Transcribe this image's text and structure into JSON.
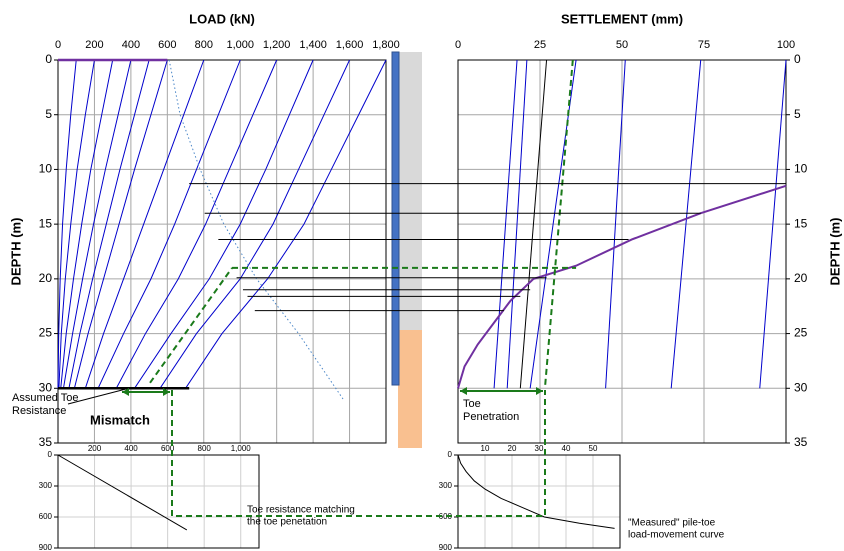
{
  "chart_data": [
    {
      "type": "line",
      "xlabel": "LOAD  (kN)",
      "ylabel": "DEPTH  (m)",
      "xlim": [
        0,
        1800
      ],
      "ylim": [
        0,
        35
      ],
      "xticks": [
        0,
        200,
        400,
        600,
        800,
        {
          "value": 1000,
          "label": "1,000"
        },
        {
          "value": 1200,
          "label": "1,200"
        },
        {
          "value": 1400,
          "label": "1,400"
        },
        {
          "value": 1600,
          "label": "1,600"
        },
        {
          "value": 1800,
          "label": "1,800"
        }
      ],
      "yticks": [
        0,
        5,
        10,
        15,
        20,
        25,
        30,
        35
      ],
      "grid": true,
      "series": [
        {
          "color": "#0000cc",
          "x": [
            100,
            70,
            45,
            25,
            12,
            4,
            0
          ],
          "values": [
            0,
            5,
            10,
            15,
            20,
            25,
            30
          ]
        },
        {
          "color": "#0000cc",
          "x": [
            200,
            150,
            105,
            70,
            40,
            18,
            5
          ],
          "values": [
            0,
            5,
            10,
            15,
            20,
            25,
            30
          ]
        },
        {
          "color": "#0000cc",
          "x": [
            300,
            240,
            180,
            130,
            85,
            45,
            15
          ],
          "values": [
            0,
            5,
            10,
            15,
            20,
            25,
            30
          ]
        },
        {
          "color": "#0000cc",
          "x": [
            400,
            330,
            260,
            195,
            135,
            80,
            30
          ],
          "values": [
            0,
            5,
            10,
            15,
            20,
            25,
            30
          ]
        },
        {
          "color": "#0000cc",
          "x": [
            500,
            420,
            340,
            265,
            190,
            120,
            60
          ],
          "values": [
            0,
            5,
            10,
            15,
            20,
            25,
            30
          ]
        },
        {
          "color": "#0000cc",
          "x": [
            600,
            510,
            420,
            335,
            250,
            165,
            90
          ],
          "values": [
            0,
            5,
            10,
            15,
            20,
            25,
            30
          ]
        },
        {
          "color": "#0000cc",
          "x": [
            800,
            690,
            580,
            470,
            360,
            250,
            150
          ],
          "values": [
            0,
            5,
            10,
            15,
            20,
            25,
            30
          ]
        },
        {
          "color": "#0000cc",
          "x": [
            1000,
            880,
            760,
            640,
            510,
            360,
            220
          ],
          "values": [
            0,
            5,
            10,
            15,
            20,
            25,
            30
          ]
        },
        {
          "color": "#0000cc",
          "x": [
            1200,
            1070,
            940,
            810,
            660,
            480,
            320
          ],
          "values": [
            0,
            5,
            10,
            15,
            20,
            25,
            30
          ]
        },
        {
          "color": "#0000cc",
          "x": [
            1400,
            1270,
            1140,
            1000,
            830,
            620,
            420
          ],
          "values": [
            0,
            5,
            10,
            15,
            20,
            25,
            30
          ]
        },
        {
          "color": "#0000cc",
          "x": [
            1600,
            1460,
            1320,
            1180,
            1000,
            760,
            560
          ],
          "values": [
            0,
            5,
            10,
            15,
            20,
            25,
            30
          ]
        },
        {
          "color": "#0000cc",
          "x": [
            1800,
            1650,
            1500,
            1350,
            1150,
            900,
            700
          ],
          "values": [
            0,
            5,
            10,
            15,
            20,
            25,
            30
          ]
        },
        {
          "color": "#4a86c8",
          "style": "dotted",
          "x": [
            610,
            670,
            780,
            910,
            1090,
            1320,
            1565
          ],
          "values": [
            0,
            5,
            10,
            15,
            20,
            25,
            31
          ]
        },
        {
          "color": "#7030a0",
          "width": 2.5,
          "x": [
            0,
            600
          ],
          "values": [
            0,
            0
          ]
        },
        {
          "color": "#000000",
          "width": 2.5,
          "x": [
            0,
            720
          ],
          "values": [
            30,
            30
          ]
        },
        {
          "color": "#1a7a1a",
          "style": "dashed",
          "width": 2,
          "x": [
            505,
            955
          ],
          "values": [
            29.5,
            19
          ]
        }
      ],
      "annotations": [
        [
          "Assumed Toe",
          "Resistance"
        ],
        [
          "Mismatch"
        ]
      ]
    },
    {
      "type": "line",
      "xlabel": "SETTLEMENT  (mm)",
      "ylabel": "DEPTH  (m)",
      "xlim": [
        0,
        100
      ],
      "ylim": [
        0,
        35
      ],
      "xticks": [
        0,
        25,
        50,
        75,
        100
      ],
      "yticks": [
        0,
        5,
        10,
        15,
        20,
        25,
        30,
        35
      ],
      "grid": true,
      "series": [
        {
          "color": "#0000cc",
          "x": [
            18,
            11
          ],
          "values": [
            0,
            30
          ]
        },
        {
          "color": "#0000cc",
          "x": [
            21,
            15
          ],
          "values": [
            0,
            30
          ]
        },
        {
          "color": "#000000",
          "x": [
            27,
            19
          ],
          "values": [
            0,
            30
          ]
        },
        {
          "color": "#0000cc",
          "x": [
            36,
            22
          ],
          "values": [
            0,
            30
          ]
        },
        {
          "color": "#0000cc",
          "x": [
            51,
            45
          ],
          "values": [
            0,
            30
          ]
        },
        {
          "color": "#0000cc",
          "x": [
            74,
            65
          ],
          "values": [
            0,
            30
          ]
        },
        {
          "color": "#0000cc",
          "x": [
            100,
            92
          ],
          "values": [
            0,
            30
          ]
        },
        {
          "color": "#7030a0",
          "width": 2,
          "x": [
            0,
            2,
            6,
            11,
            16,
            23,
            36,
            53,
            74,
            100
          ],
          "values": [
            30,
            28,
            26,
            24,
            22,
            20,
            18.8,
            16.4,
            14,
            11.5
          ]
        },
        {
          "color": "#1a7a1a",
          "style": "dashed",
          "width": 2,
          "x": [
            35,
            26.5
          ],
          "values": [
            0,
            30
          ]
        }
      ],
      "annotations": [
        [
          "Toe",
          "Penetration"
        ]
      ]
    },
    {
      "type": "line",
      "xlim": [
        0,
        1100
      ],
      "ylim": [
        0,
        900
      ],
      "xticks": [
        200,
        400,
        600,
        800,
        {
          "value": 1000,
          "label": "1,000"
        }
      ],
      "yticks": [
        0,
        300,
        600,
        900
      ],
      "grid": true,
      "series": [
        {
          "color": "#000000",
          "x": [
            0,
            705
          ],
          "values": [
            0,
            725
          ]
        }
      ],
      "annotations": [
        [
          "Toe resistance matching",
          "the toe penetation"
        ]
      ]
    },
    {
      "type": "line",
      "xlim": [
        0,
        60
      ],
      "ylim": [
        0,
        900
      ],
      "xticks": [
        10,
        20,
        30,
        40,
        50
      ],
      "yticks": [
        0,
        300,
        600,
        900
      ],
      "grid": true,
      "series": [
        {
          "color": "#000000",
          "x": [
            0,
            1,
            3,
            6,
            10,
            16,
            24,
            32,
            45,
            58
          ],
          "values": [
            0,
            80,
            160,
            250,
            330,
            420,
            510,
            600,
            660,
            710
          ]
        }
      ],
      "annotations": [
        [
          "\"Measured\" pile-toe",
          "load-movement curve"
        ]
      ]
    }
  ],
  "connectors": [
    {
      "depth": 11.3,
      "load": 720,
      "settlement": 100,
      "color": "#000000"
    },
    {
      "depth": 14,
      "load": 805,
      "settlement": 74,
      "color": "#000000"
    },
    {
      "depth": 16.4,
      "load": 880,
      "settlement": 52,
      "color": "#000000"
    },
    {
      "depth": 19.9,
      "load": 980,
      "settlement": 27,
      "color": "#000000"
    },
    {
      "depth": 21,
      "load": 1015,
      "settlement": 22,
      "color": "#000000"
    },
    {
      "depth": 21.6,
      "load": 1040,
      "settlement": 19,
      "color": "#000000"
    },
    {
      "depth": 22.9,
      "load": 1080,
      "settlement": 14,
      "color": "#000000"
    },
    {
      "depth": 19,
      "load": 955,
      "settlement": 36,
      "color": "#1a7a1a",
      "style": "dashed"
    }
  ]
}
